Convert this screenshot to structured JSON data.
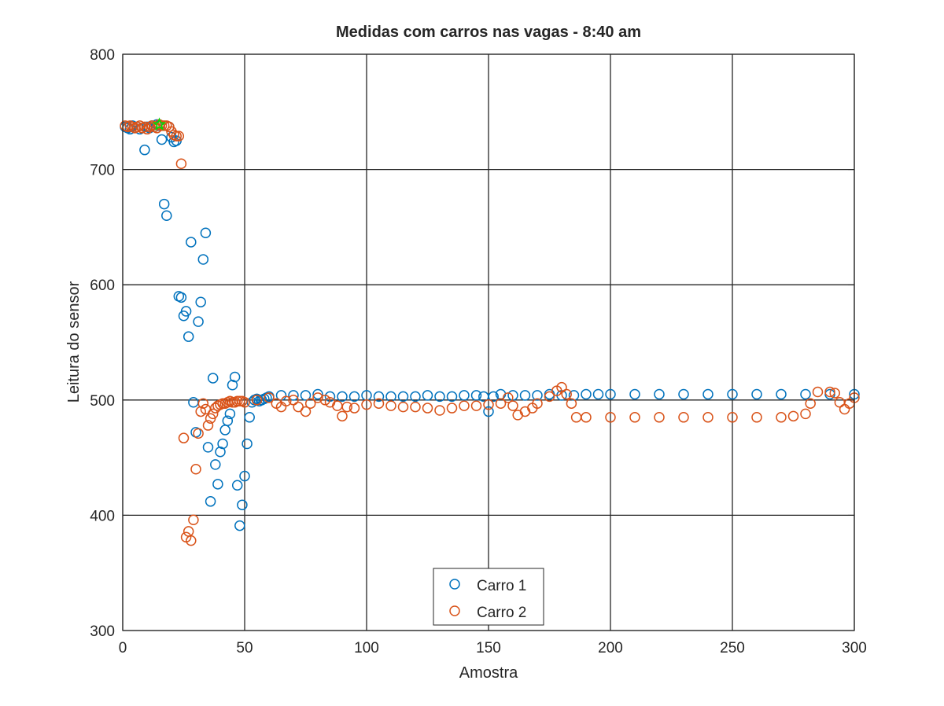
{
  "chart_data": {
    "type": "scatter",
    "title": "Medidas com carros nas vagas - 8:40 am",
    "xlabel": "Amostra",
    "ylabel": "Leitura do sensor",
    "xlim": [
      0,
      300
    ],
    "ylim": [
      300,
      800
    ],
    "xticks": [
      0,
      50,
      100,
      150,
      200,
      250,
      300
    ],
    "yticks": [
      300,
      400,
      500,
      600,
      700,
      800
    ],
    "xtick_labels": [
      "0",
      "50",
      "100",
      "150",
      "200",
      "250",
      "300"
    ],
    "ytick_labels": [
      "300",
      "400",
      "500",
      "600",
      "700",
      "800"
    ],
    "grid": true,
    "legend_position": "bottom-center",
    "marker": "open-circle",
    "series": [
      {
        "name": "Carro 1",
        "color": "#0072BD",
        "x": [
          1,
          2,
          3,
          4,
          5,
          6,
          7,
          8,
          9,
          10,
          11,
          12,
          13,
          14,
          15,
          16,
          17,
          18,
          19,
          20,
          21,
          22,
          23,
          24,
          25,
          26,
          27,
          28,
          29,
          30,
          31,
          32,
          33,
          34,
          35,
          36,
          37,
          38,
          39,
          40,
          41,
          42,
          43,
          44,
          45,
          46,
          47,
          48,
          49,
          50,
          51,
          52,
          53,
          54,
          55,
          56,
          57,
          58,
          59,
          60,
          65,
          70,
          75,
          80,
          85,
          90,
          95,
          100,
          105,
          110,
          115,
          120,
          125,
          130,
          135,
          140,
          145,
          148,
          150,
          152,
          155,
          160,
          165,
          170,
          175,
          180,
          185,
          190,
          195,
          200,
          210,
          220,
          230,
          240,
          250,
          260,
          270,
          280,
          290,
          300
        ],
        "y": [
          737,
          736,
          735,
          738,
          736,
          737,
          735,
          736,
          717,
          737,
          736,
          738,
          737,
          739,
          738,
          726,
          670,
          660,
          737,
          728,
          724,
          725,
          590,
          589,
          573,
          577,
          555,
          637,
          498,
          472,
          568,
          585,
          622,
          645,
          459,
          412,
          519,
          444,
          427,
          455,
          462,
          474,
          482,
          488,
          513,
          520,
          426,
          391,
          409,
          434,
          462,
          485,
          498,
          500,
          501,
          499,
          500,
          501,
          502,
          503,
          504,
          504,
          504,
          505,
          503,
          503,
          503,
          504,
          503,
          503,
          503,
          503,
          504,
          503,
          503,
          504,
          504,
          503,
          490,
          503,
          505,
          504,
          504,
          504,
          505,
          504,
          504,
          505,
          505,
          505,
          505,
          505,
          505,
          505,
          505,
          505,
          505,
          505,
          505,
          505
        ]
      },
      {
        "name": "Carro 2",
        "color": "#D95319",
        "x": [
          1,
          2,
          3,
          4,
          5,
          6,
          7,
          8,
          9,
          10,
          11,
          12,
          13,
          14,
          15,
          16,
          17,
          18,
          19,
          20,
          21,
          22,
          23,
          24,
          25,
          26,
          27,
          28,
          29,
          30,
          31,
          32,
          33,
          34,
          35,
          36,
          37,
          38,
          39,
          40,
          41,
          42,
          43,
          44,
          45,
          46,
          47,
          48,
          49,
          50,
          55,
          60,
          63,
          65,
          67,
          70,
          72,
          75,
          77,
          80,
          83,
          85,
          88,
          90,
          92,
          95,
          100,
          105,
          110,
          115,
          120,
          125,
          130,
          135,
          140,
          145,
          150,
          155,
          158,
          160,
          162,
          165,
          168,
          170,
          175,
          178,
          180,
          182,
          184,
          186,
          190,
          200,
          210,
          220,
          230,
          240,
          250,
          260,
          270,
          275,
          280,
          282,
          285,
          290,
          292,
          294,
          296,
          298,
          300
        ],
        "y": [
          738,
          737,
          738,
          737,
          736,
          737,
          738,
          736,
          737,
          735,
          737,
          738,
          737,
          736,
          739,
          738,
          738,
          738,
          737,
          733,
          730,
          729,
          729,
          705,
          467,
          381,
          386,
          378,
          396,
          440,
          471,
          490,
          497,
          492,
          478,
          484,
          488,
          493,
          495,
          496,
          497,
          497,
          498,
          499,
          498,
          498,
          499,
          499,
          499,
          498,
          500,
          502,
          497,
          494,
          499,
          500,
          494,
          490,
          497,
          502,
          500,
          498,
          495,
          486,
          494,
          493,
          496,
          497,
          495,
          494,
          494,
          493,
          491,
          493,
          495,
          495,
          496,
          497,
          502,
          495,
          487,
          490,
          493,
          497,
          503,
          508,
          511,
          505,
          497,
          485,
          485,
          485,
          485,
          485,
          485,
          485,
          485,
          485,
          485,
          486,
          488,
          497,
          507,
          507,
          506,
          498,
          492,
          497,
          502
        ]
      }
    ],
    "highlight": {
      "x": 15,
      "y": 739,
      "marker": "star",
      "color": "#00DD00"
    }
  }
}
